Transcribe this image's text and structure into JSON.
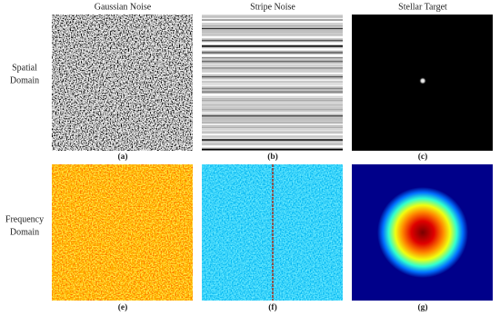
{
  "column_headers": [
    "Gaussian Noise",
    "Stripe Noise",
    "Stellar Target"
  ],
  "rows": [
    {
      "label_lines": [
        "Spatial",
        "Domain"
      ],
      "panel_labels": [
        "(a)",
        "(b)",
        "(c)"
      ]
    },
    {
      "label_lines": [
        "Frequency",
        "Domain"
      ],
      "panel_labels": [
        "(e)",
        "(f)",
        "(g)"
      ]
    }
  ]
}
